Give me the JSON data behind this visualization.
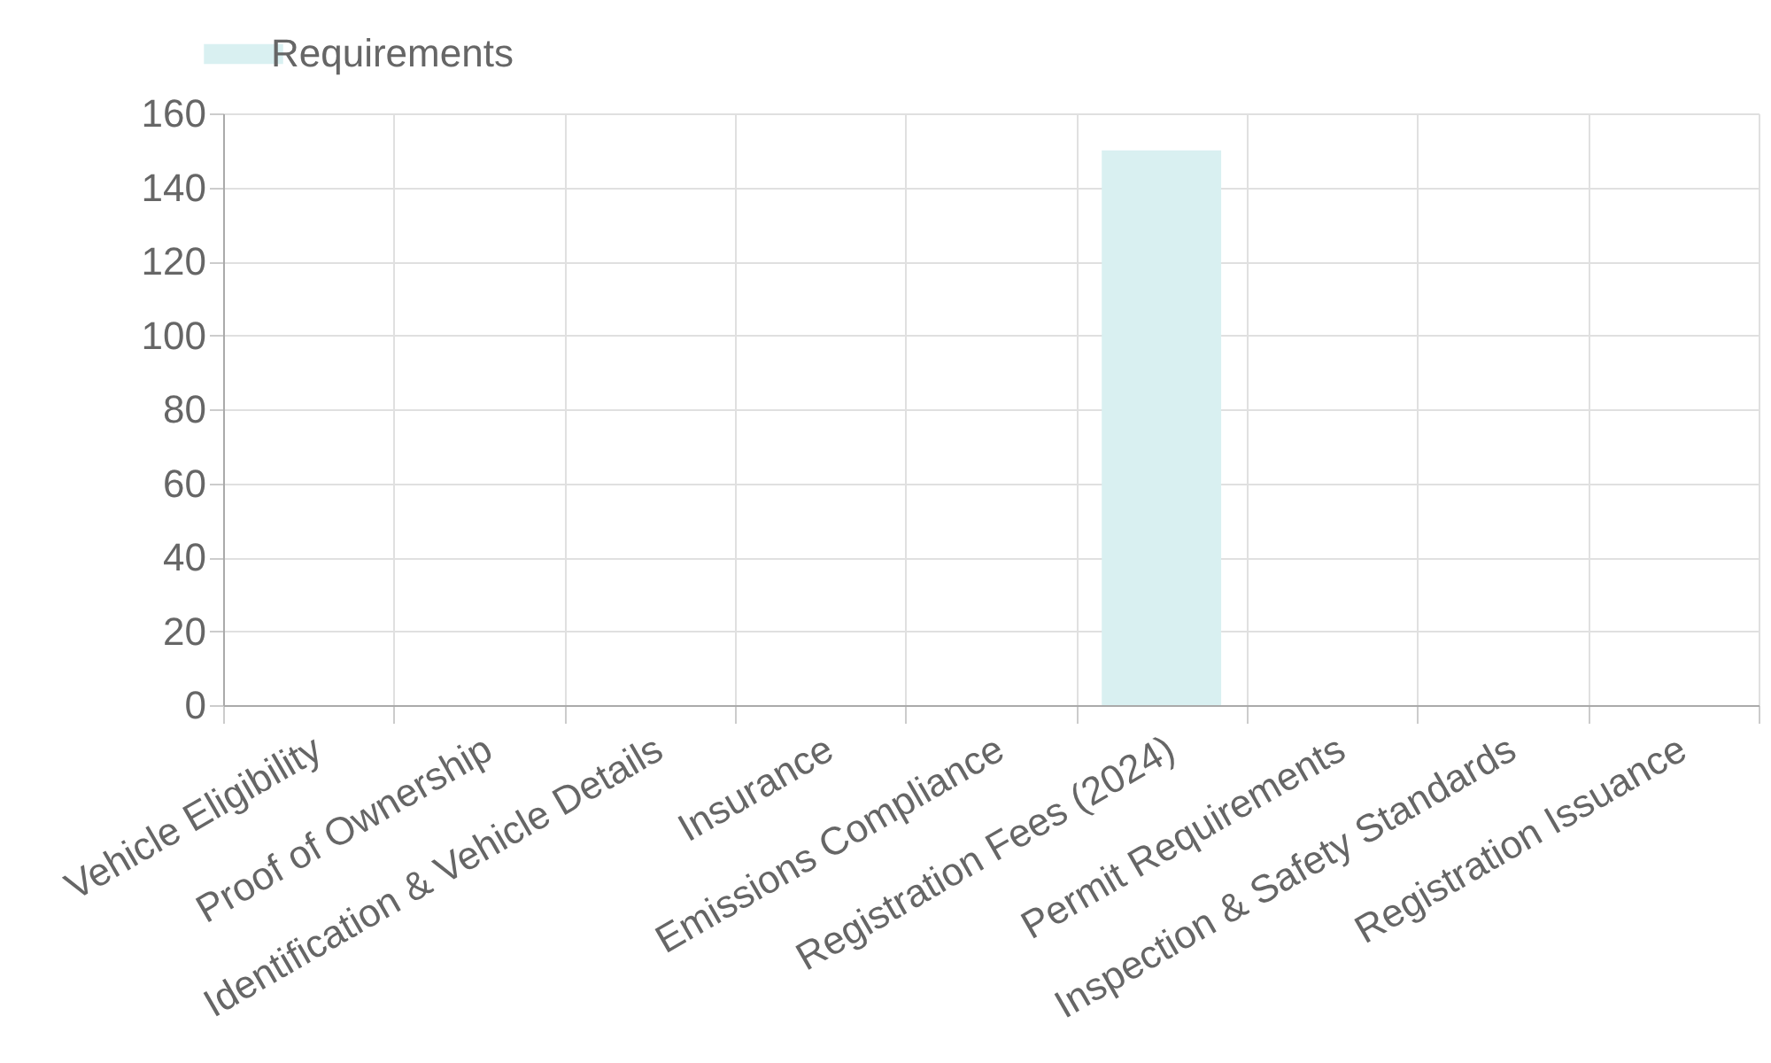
{
  "chart_data": {
    "type": "bar",
    "categories": [
      "Vehicle Eligibility",
      "Proof of Ownership",
      "Identification & Vehicle Details",
      "Insurance",
      "Emissions Compliance",
      "Registration Fees (2024)",
      "Permit Requirements",
      "Inspection & Safety Standards",
      "Registration Issuance"
    ],
    "series": [
      {
        "name": "Requirements",
        "color": "#d9f0f1",
        "values": [
          0,
          0,
          0,
          0,
          0,
          150,
          0,
          0,
          0
        ]
      }
    ],
    "ylim": [
      0,
      160
    ],
    "yticks": [
      0,
      20,
      40,
      60,
      80,
      100,
      120,
      140,
      160
    ],
    "grid": true,
    "legend": "top"
  }
}
